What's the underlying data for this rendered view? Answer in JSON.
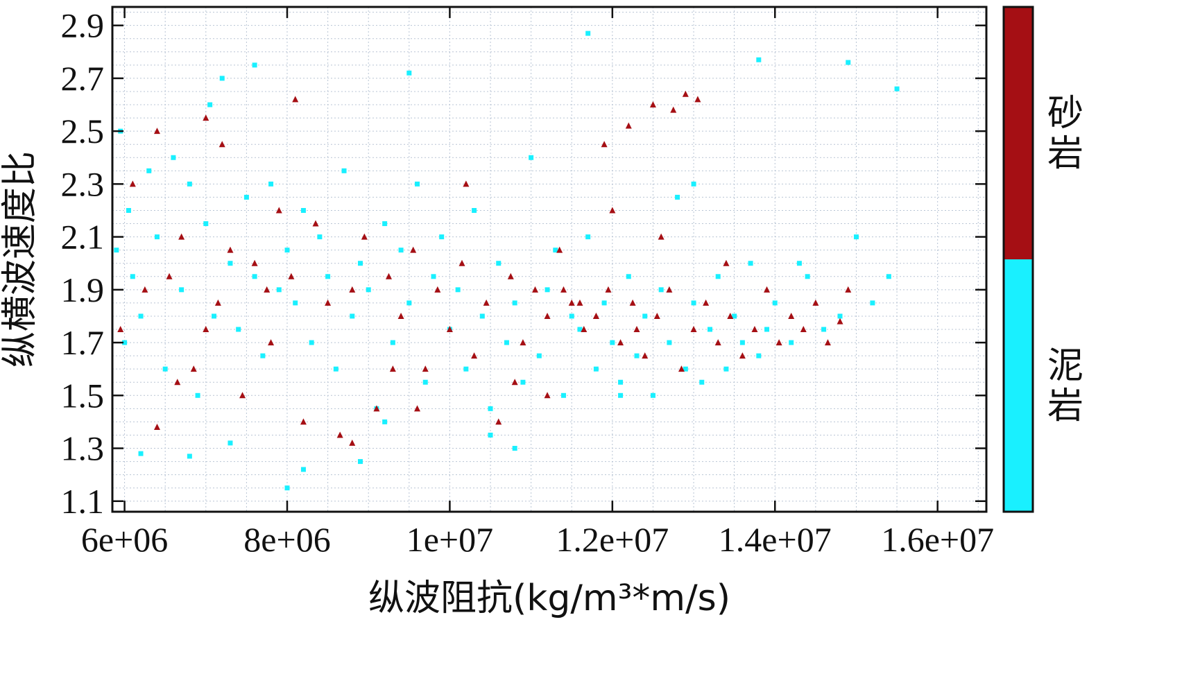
{
  "chart_data": {
    "type": "scatter",
    "xlabel": "纵波阻抗(kg/m³*m/s)",
    "ylabel": "纵横波速度比",
    "xlim": [
      5850000,
      16600000
    ],
    "ylim": [
      1.06,
      2.97
    ],
    "x_ticks": [
      6000000,
      8000000,
      10000000,
      12000000,
      14000000,
      16000000
    ],
    "x_tick_labels": [
      "6e+06",
      "8e+06",
      "1e+07",
      "1.2e+07",
      "1.4e+07",
      "1.6e+07"
    ],
    "y_ticks": [
      1.1,
      1.3,
      1.5,
      1.7,
      1.9,
      2.1,
      2.3,
      2.5,
      2.7,
      2.9
    ],
    "y_tick_labels": [
      "1.1",
      "1.3",
      "1.5",
      "1.7",
      "1.9",
      "2.1",
      "2.3",
      "2.5",
      "2.7",
      "2.9"
    ],
    "grid": true,
    "legend_position": "right (colorbar)",
    "series": [
      {
        "name": "泥岩",
        "color": "#19f0ff",
        "marker": "square",
        "x": [
          5900000,
          5950000,
          6000000,
          6050000,
          6100000,
          6200000,
          6300000,
          6400000,
          6500000,
          6600000,
          6700000,
          6800000,
          6900000,
          7000000,
          7050000,
          7100000,
          7200000,
          7300000,
          7400000,
          7500000,
          7600000,
          7700000,
          7800000,
          7900000,
          8000000,
          8100000,
          8200000,
          8300000,
          8400000,
          8500000,
          8600000,
          8700000,
          8800000,
          8900000,
          9000000,
          9100000,
          9200000,
          9300000,
          9400000,
          9500000,
          9600000,
          9700000,
          9800000,
          9900000,
          10000000,
          10100000,
          10200000,
          10300000,
          10400000,
          10500000,
          10600000,
          10700000,
          10800000,
          10900000,
          11000000,
          11100000,
          11200000,
          11300000,
          11400000,
          11500000,
          11600000,
          11700000,
          11800000,
          11900000,
          12000000,
          12100000,
          12200000,
          12300000,
          12400000,
          12500000,
          12600000,
          12700000,
          12800000,
          12900000,
          13000000,
          13100000,
          13200000,
          13300000,
          13400000,
          13500000,
          13600000,
          13700000,
          13800000,
          13900000,
          14000000,
          14200000,
          14400000,
          14600000,
          14800000,
          15000000,
          15200000,
          15400000,
          8000000,
          8200000,
          6800000,
          7600000,
          9500000,
          10800000,
          11700000,
          13800000,
          14900000,
          15500000,
          6200000,
          7300000,
          8900000,
          10500000,
          12100000,
          13000000,
          14300000,
          9200000
        ],
        "y": [
          2.05,
          2.5,
          1.7,
          2.2,
          1.95,
          1.8,
          2.35,
          2.1,
          1.6,
          2.4,
          1.9,
          2.3,
          1.5,
          2.15,
          2.6,
          1.8,
          2.7,
          2.0,
          1.75,
          2.25,
          1.95,
          1.65,
          2.3,
          1.9,
          2.05,
          1.85,
          2.2,
          1.7,
          2.1,
          1.95,
          1.6,
          2.35,
          1.8,
          2.0,
          1.9,
          1.45,
          2.15,
          1.7,
          2.05,
          1.85,
          2.3,
          1.55,
          1.95,
          2.1,
          1.75,
          1.9,
          1.6,
          2.2,
          1.8,
          1.45,
          2.0,
          1.7,
          1.85,
          1.55,
          2.4,
          1.65,
          1.9,
          2.05,
          1.5,
          1.8,
          1.75,
          2.1,
          1.6,
          1.85,
          1.7,
          1.55,
          1.95,
          1.65,
          1.8,
          1.5,
          1.9,
          1.7,
          2.25,
          1.6,
          1.85,
          1.55,
          1.75,
          1.95,
          1.6,
          1.8,
          1.7,
          2.0,
          1.65,
          1.75,
          1.85,
          1.7,
          1.95,
          1.75,
          1.8,
          2.1,
          1.85,
          1.95,
          1.15,
          1.22,
          1.27,
          2.75,
          2.72,
          1.3,
          2.87,
          2.77,
          2.76,
          2.66,
          1.28,
          1.32,
          1.25,
          1.35,
          1.5,
          2.3,
          2.0,
          1.4
        ]
      },
      {
        "name": "砂岩",
        "color": "#a50f14",
        "marker": "triangle",
        "x": [
          5950000,
          6100000,
          6250000,
          6400000,
          6550000,
          6700000,
          6850000,
          7000000,
          7150000,
          7300000,
          7450000,
          7600000,
          7750000,
          7900000,
          8050000,
          8200000,
          8350000,
          8500000,
          8650000,
          8800000,
          8950000,
          9100000,
          9250000,
          9400000,
          9550000,
          9700000,
          9850000,
          10000000,
          10150000,
          10300000,
          10450000,
          10600000,
          10750000,
          10900000,
          11050000,
          11200000,
          11350000,
          11500000,
          11650000,
          11800000,
          11950000,
          12100000,
          12250000,
          12400000,
          12550000,
          12700000,
          12850000,
          13000000,
          13150000,
          13300000,
          13450000,
          13600000,
          13750000,
          13900000,
          14050000,
          14200000,
          14350000,
          14500000,
          14650000,
          14800000,
          14900000,
          11900000,
          12200000,
          12500000,
          12750000,
          12900000,
          13050000,
          8100000,
          6400000,
          6650000,
          7200000,
          8800000,
          9300000,
          10200000,
          11200000,
          12000000,
          11400000,
          11600000,
          11800000,
          12300000,
          12600000,
          13400000,
          10800000,
          9600000,
          7800000,
          7000000
        ],
        "y": [
          1.75,
          2.3,
          1.9,
          2.5,
          1.95,
          2.1,
          1.6,
          2.55,
          1.85,
          2.05,
          1.5,
          2.0,
          1.9,
          2.2,
          1.95,
          1.4,
          2.15,
          1.85,
          1.35,
          1.9,
          2.1,
          1.45,
          1.95,
          1.8,
          2.05,
          1.6,
          1.9,
          1.75,
          2.0,
          1.65,
          1.85,
          1.4,
          1.95,
          1.7,
          1.9,
          1.8,
          2.05,
          1.85,
          1.75,
          1.8,
          1.9,
          1.7,
          1.85,
          1.65,
          1.8,
          1.9,
          1.6,
          1.75,
          1.85,
          1.7,
          1.8,
          1.65,
          1.75,
          1.9,
          1.7,
          1.8,
          1.75,
          1.85,
          1.7,
          1.78,
          1.9,
          2.45,
          2.52,
          2.6,
          2.58,
          2.64,
          2.62,
          2.62,
          1.38,
          1.55,
          2.45,
          1.32,
          1.6,
          2.3,
          1.5,
          2.2,
          1.9,
          1.85,
          1.8,
          1.75,
          2.1,
          2.0,
          1.55,
          1.45,
          1.7,
          1.75
        ]
      }
    ],
    "colorbar": {
      "labels": [
        "砂岩",
        "泥岩"
      ],
      "colors": [
        "#a50f14",
        "#19f0ff"
      ]
    }
  }
}
